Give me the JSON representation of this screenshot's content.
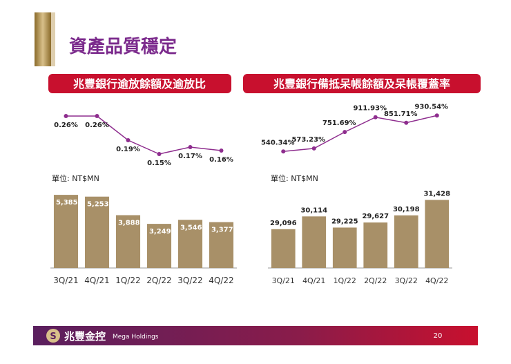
{
  "slide": {
    "title": "資產品質穩定"
  },
  "footer": {
    "company": "兆豐金控",
    "english": "Mega Holdings",
    "page": "20"
  },
  "chart_data": [
    {
      "type": "line",
      "title": "兆豐銀行逾放餘額及逾放比",
      "color": "#8e2d8e",
      "values": [
        0.26,
        0.26,
        0.19,
        0.15,
        0.17,
        0.16
      ],
      "value_labels": [
        "0.26%",
        "0.26%",
        "0.19%",
        "0.15%",
        "0.17%",
        "0.16%"
      ],
      "ylim": [
        0.12,
        0.28
      ]
    },
    {
      "type": "bar",
      "unit_label": "單位: NT$MN",
      "color": "#a89068",
      "categories": [
        "3Q/21",
        "4Q/21",
        "1Q/22",
        "2Q/22",
        "3Q/22",
        "4Q/22"
      ],
      "values": [
        5385,
        5253,
        3888,
        3249,
        3546,
        3377
      ],
      "value_labels": [
        "5,385",
        "5,253",
        "3,888",
        "3,249",
        "3,546",
        "3,377"
      ],
      "ylim": [
        0,
        6000
      ]
    },
    {
      "type": "line",
      "title": "兆豐銀行備抵呆帳餘額及呆帳覆蓋率",
      "color": "#8e2d8e",
      "values": [
        540.34,
        573.23,
        751.69,
        911.93,
        851.71,
        930.54
      ],
      "value_labels": [
        "540.34%",
        "573.23%",
        "751.69%",
        "911.93%",
        "851.71%",
        "930.54%"
      ],
      "ylim": [
        400,
        1000
      ]
    },
    {
      "type": "bar",
      "unit_label": "單位: NT$MN",
      "color": "#a89068",
      "categories": [
        "3Q/21",
        "4Q/21",
        "1Q/22",
        "2Q/22",
        "3Q/22",
        "4Q/22"
      ],
      "values": [
        29096,
        30114,
        29225,
        29627,
        30198,
        31428
      ],
      "value_labels": [
        "29,096",
        "30,114",
        "29,225",
        "29,627",
        "30,198",
        "31,428"
      ],
      "ylim": [
        26000,
        32500
      ]
    }
  ]
}
